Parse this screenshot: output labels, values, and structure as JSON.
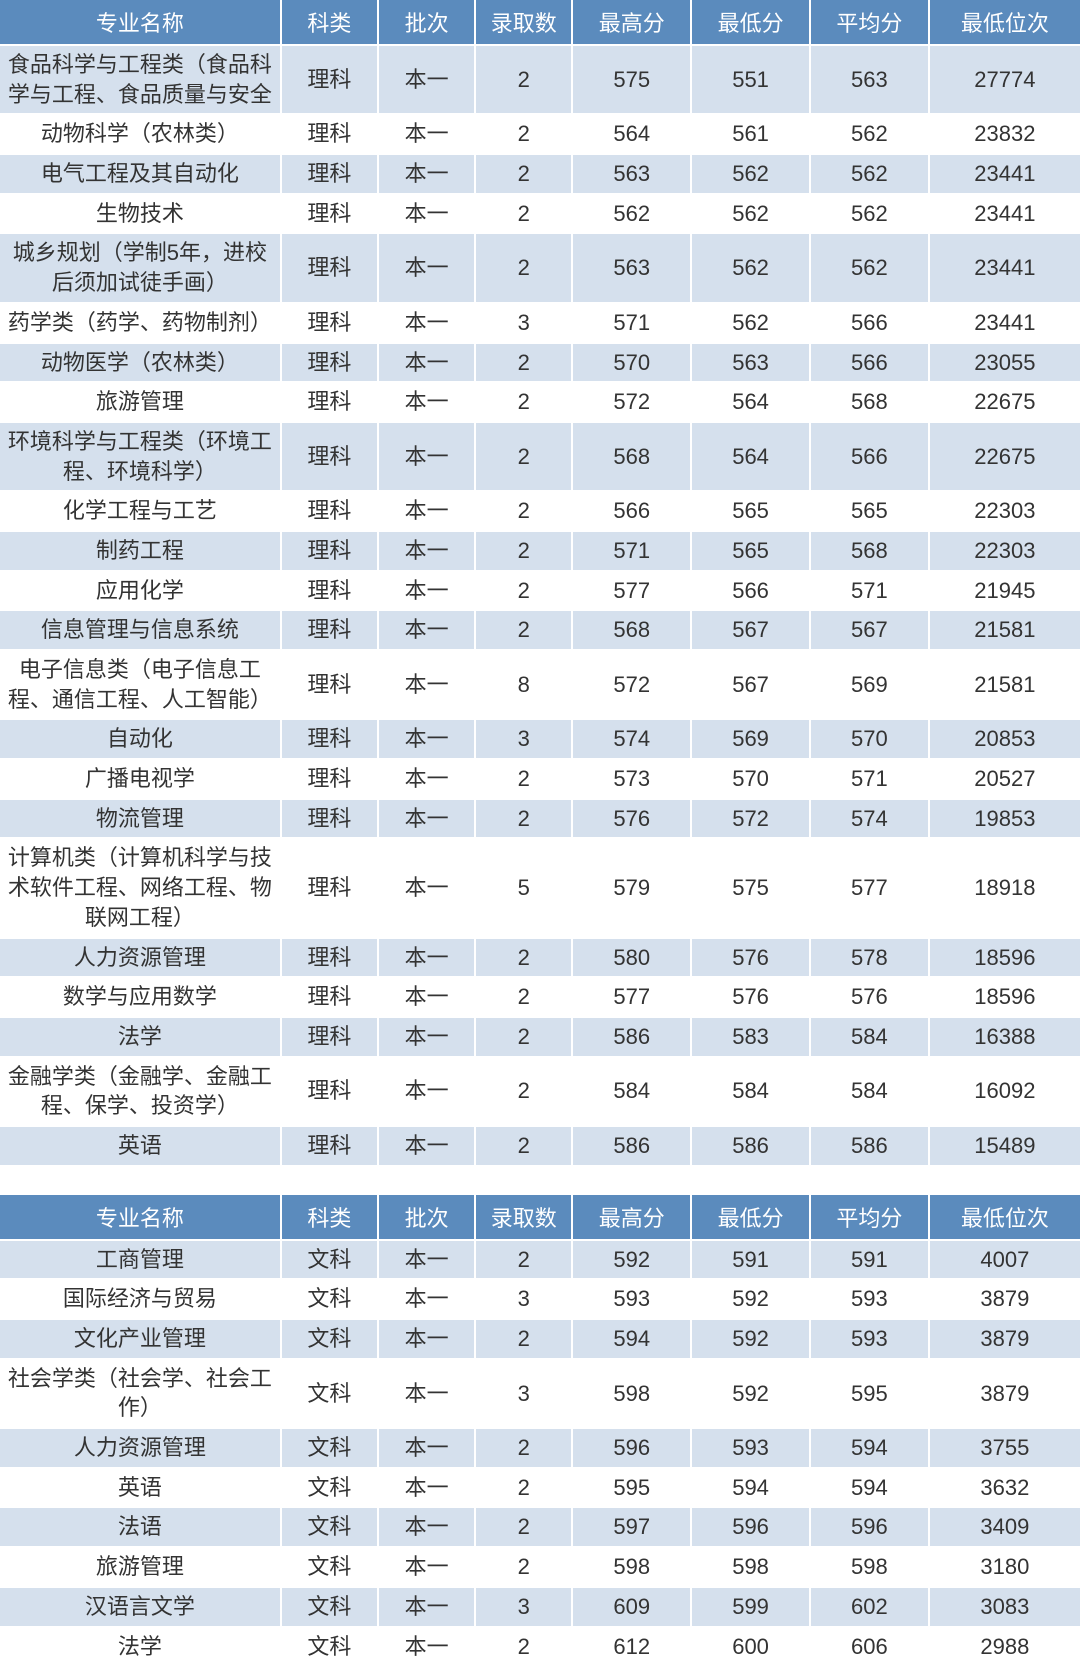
{
  "colors": {
    "header_bg": "#5b8bbd",
    "header_fg": "#ffffff",
    "row_odd_bg": "#ffffff",
    "row_even_bg": "#d5e0ed",
    "border": "#ffffff",
    "text": "#333333"
  },
  "typography": {
    "header_fontsize_pt": 16,
    "cell_fontsize_pt": 16,
    "font_family": "Microsoft YaHei"
  },
  "columns": [
    {
      "key": "major",
      "label": "专业名称",
      "width_pct": 26,
      "align": "center"
    },
    {
      "key": "cat",
      "label": "科类",
      "width_pct": 9,
      "align": "center"
    },
    {
      "key": "batch",
      "label": "批次",
      "width_pct": 9,
      "align": "center"
    },
    {
      "key": "count",
      "label": "录取数",
      "width_pct": 9,
      "align": "center"
    },
    {
      "key": "max",
      "label": "最高分",
      "width_pct": 11,
      "align": "center"
    },
    {
      "key": "min",
      "label": "最低分",
      "width_pct": 11,
      "align": "center"
    },
    {
      "key": "avg",
      "label": "平均分",
      "width_pct": 11,
      "align": "center"
    },
    {
      "key": "rank",
      "label": "最低位次",
      "width_pct": 14,
      "align": "center"
    }
  ],
  "section1_rows": [
    {
      "major": "食品科学与工程类（食品科学与工程、食品质量与安全",
      "cat": "理科",
      "batch": "本一",
      "count": 2,
      "max": 575,
      "min": 551,
      "avg": 563,
      "rank": 27774
    },
    {
      "major": "动物科学（农林类）",
      "cat": "理科",
      "batch": "本一",
      "count": 2,
      "max": 564,
      "min": 561,
      "avg": 562,
      "rank": 23832
    },
    {
      "major": "电气工程及其自动化",
      "cat": "理科",
      "batch": "本一",
      "count": 2,
      "max": 563,
      "min": 562,
      "avg": 562,
      "rank": 23441
    },
    {
      "major": "生物技术",
      "cat": "理科",
      "batch": "本一",
      "count": 2,
      "max": 562,
      "min": 562,
      "avg": 562,
      "rank": 23441
    },
    {
      "major": "城乡规划（学制5年，进校后须加试徒手画）",
      "cat": "理科",
      "batch": "本一",
      "count": 2,
      "max": 563,
      "min": 562,
      "avg": 562,
      "rank": 23441
    },
    {
      "major": "药学类（药学、药物制剂）",
      "cat": "理科",
      "batch": "本一",
      "count": 3,
      "max": 571,
      "min": 562,
      "avg": 566,
      "rank": 23441
    },
    {
      "major": "动物医学（农林类）",
      "cat": "理科",
      "batch": "本一",
      "count": 2,
      "max": 570,
      "min": 563,
      "avg": 566,
      "rank": 23055
    },
    {
      "major": "旅游管理",
      "cat": "理科",
      "batch": "本一",
      "count": 2,
      "max": 572,
      "min": 564,
      "avg": 568,
      "rank": 22675
    },
    {
      "major": "环境科学与工程类（环境工程、环境科学）",
      "cat": "理科",
      "batch": "本一",
      "count": 2,
      "max": 568,
      "min": 564,
      "avg": 566,
      "rank": 22675
    },
    {
      "major": "化学工程与工艺",
      "cat": "理科",
      "batch": "本一",
      "count": 2,
      "max": 566,
      "min": 565,
      "avg": 565,
      "rank": 22303
    },
    {
      "major": "制药工程",
      "cat": "理科",
      "batch": "本一",
      "count": 2,
      "max": 571,
      "min": 565,
      "avg": 568,
      "rank": 22303
    },
    {
      "major": "应用化学",
      "cat": "理科",
      "batch": "本一",
      "count": 2,
      "max": 577,
      "min": 566,
      "avg": 571,
      "rank": 21945
    },
    {
      "major": "信息管理与信息系统",
      "cat": "理科",
      "batch": "本一",
      "count": 2,
      "max": 568,
      "min": 567,
      "avg": 567,
      "rank": 21581
    },
    {
      "major": "电子信息类（电子信息工程、通信工程、人工智能）",
      "cat": "理科",
      "batch": "本一",
      "count": 8,
      "max": 572,
      "min": 567,
      "avg": 569,
      "rank": 21581
    },
    {
      "major": "自动化",
      "cat": "理科",
      "batch": "本一",
      "count": 3,
      "max": 574,
      "min": 569,
      "avg": 570,
      "rank": 20853
    },
    {
      "major": "广播电视学",
      "cat": "理科",
      "batch": "本一",
      "count": 2,
      "max": 573,
      "min": 570,
      "avg": 571,
      "rank": 20527
    },
    {
      "major": "物流管理",
      "cat": "理科",
      "batch": "本一",
      "count": 2,
      "max": 576,
      "min": 572,
      "avg": 574,
      "rank": 19853
    },
    {
      "major": "计算机类（计算机科学与技术软件工程、网络工程、物联网工程）",
      "cat": "理科",
      "batch": "本一",
      "count": 5,
      "max": 579,
      "min": 575,
      "avg": 577,
      "rank": 18918
    },
    {
      "major": "人力资源管理",
      "cat": "理科",
      "batch": "本一",
      "count": 2,
      "max": 580,
      "min": 576,
      "avg": 578,
      "rank": 18596
    },
    {
      "major": "数学与应用数学",
      "cat": "理科",
      "batch": "本一",
      "count": 2,
      "max": 577,
      "min": 576,
      "avg": 576,
      "rank": 18596
    },
    {
      "major": "法学",
      "cat": "理科",
      "batch": "本一",
      "count": 2,
      "max": 586,
      "min": 583,
      "avg": 584,
      "rank": 16388
    },
    {
      "major": "金融学类（金融学、金融工程、保学、投资学）",
      "cat": "理科",
      "batch": "本一",
      "count": 2,
      "max": 584,
      "min": 584,
      "avg": 584,
      "rank": 16092
    },
    {
      "major": "英语",
      "cat": "理科",
      "batch": "本一",
      "count": 2,
      "max": 586,
      "min": 586,
      "avg": 586,
      "rank": 15489
    }
  ],
  "section2_rows": [
    {
      "major": "工商管理",
      "cat": "文科",
      "batch": "本一",
      "count": 2,
      "max": 592,
      "min": 591,
      "avg": 591,
      "rank": 4007
    },
    {
      "major": "国际经济与贸易",
      "cat": "文科",
      "batch": "本一",
      "count": 3,
      "max": 593,
      "min": 592,
      "avg": 593,
      "rank": 3879
    },
    {
      "major": "文化产业管理",
      "cat": "文科",
      "batch": "本一",
      "count": 2,
      "max": 594,
      "min": 592,
      "avg": 593,
      "rank": 3879
    },
    {
      "major": "社会学类（社会学、社会工作）",
      "cat": "文科",
      "batch": "本一",
      "count": 3,
      "max": 598,
      "min": 592,
      "avg": 595,
      "rank": 3879
    },
    {
      "major": "人力资源管理",
      "cat": "文科",
      "batch": "本一",
      "count": 2,
      "max": 596,
      "min": 593,
      "avg": 594,
      "rank": 3755
    },
    {
      "major": "英语",
      "cat": "文科",
      "batch": "本一",
      "count": 2,
      "max": 595,
      "min": 594,
      "avg": 594,
      "rank": 3632
    },
    {
      "major": "法语",
      "cat": "文科",
      "batch": "本一",
      "count": 2,
      "max": 597,
      "min": 596,
      "avg": 596,
      "rank": 3409
    },
    {
      "major": "旅游管理",
      "cat": "文科",
      "batch": "本一",
      "count": 2,
      "max": 598,
      "min": 598,
      "avg": 598,
      "rank": 3180
    },
    {
      "major": "汉语言文学",
      "cat": "文科",
      "batch": "本一",
      "count": 3,
      "max": 609,
      "min": 599,
      "avg": 602,
      "rank": 3083
    },
    {
      "major": "法学",
      "cat": "文科",
      "batch": "本一",
      "count": 2,
      "max": 612,
      "min": 600,
      "avg": 606,
      "rank": 2988
    }
  ]
}
